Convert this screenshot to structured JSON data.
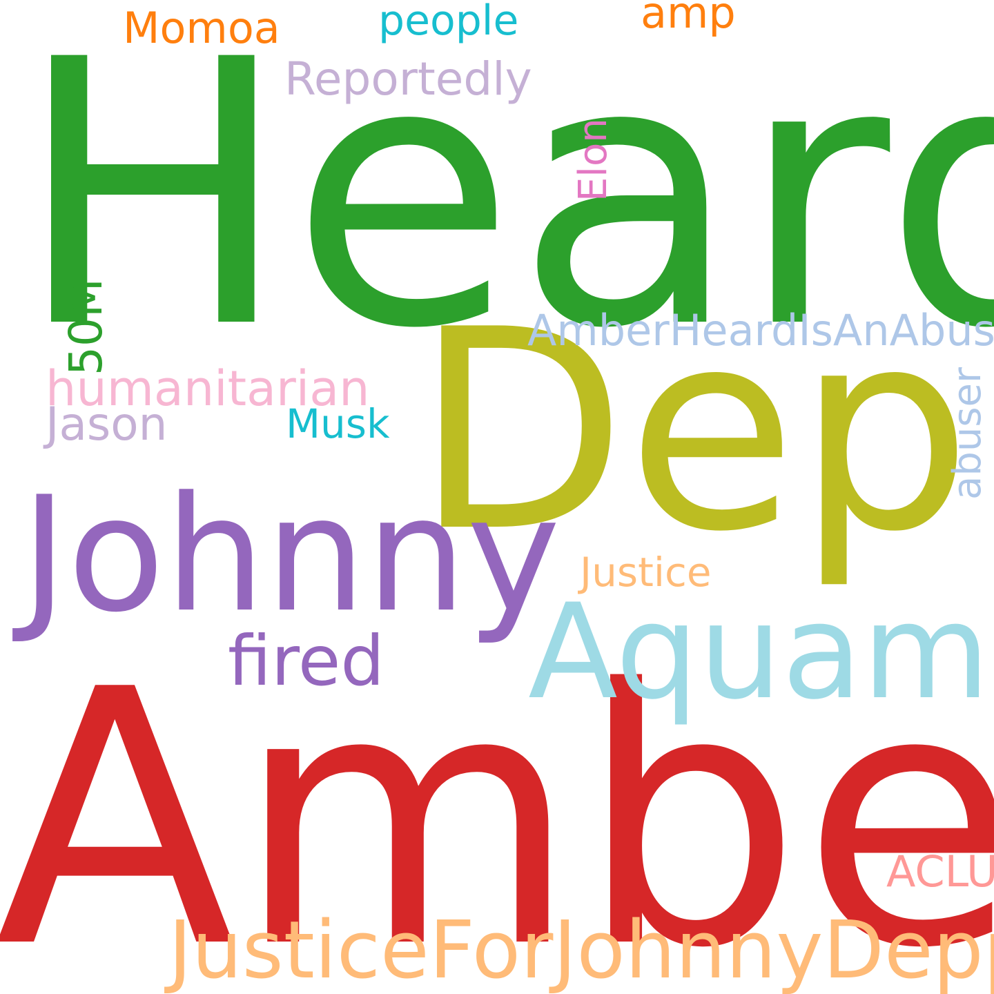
{
  "words": [
    {
      "id": "heard",
      "text": "Heard",
      "color": "#2ca02c"
    },
    {
      "id": "amber",
      "text": "Amber",
      "color": "#d62728"
    },
    {
      "id": "depp",
      "text": "Depp",
      "color": "#bcbd22"
    },
    {
      "id": "johnny",
      "text": "Johnny",
      "color": "#9467bd"
    },
    {
      "id": "aquaman",
      "text": "Aquaman",
      "color": "#9edae5"
    },
    {
      "id": "justicefor",
      "text": "JusticeForJohnnyDepp",
      "color": "#ffbb78"
    },
    {
      "id": "fired",
      "text": "fired",
      "color": "#9467bd"
    },
    {
      "id": "justice",
      "text": "Justice",
      "color": "#ffbb78"
    },
    {
      "id": "reportedly",
      "text": "Reportedly",
      "color": "#c5b0d5"
    },
    {
      "id": "humanitarian",
      "text": "humanitarian",
      "color": "#f7b6d2"
    },
    {
      "id": "jason",
      "text": "Jason",
      "color": "#c5b0d5"
    },
    {
      "id": "musk",
      "text": "Musk",
      "color": "#17becf"
    },
    {
      "id": "amberheardisanabuser",
      "text": "AmberHeardIsAnAbuser",
      "color": "#aec7e8"
    },
    {
      "id": "momoa",
      "text": "Momoa",
      "color": "#ff7f0e"
    },
    {
      "id": "people",
      "text": "people",
      "color": "#17becf"
    },
    {
      "id": "amp",
      "text": "amp",
      "color": "#ff7f0e"
    },
    {
      "id": "aclu",
      "text": "ACLU",
      "color": "#ff9896"
    },
    {
      "id": "elon",
      "text": "Elon",
      "color": "#e377c2"
    },
    {
      "id": "50m",
      "text": "50M",
      "color": "#2ca02c"
    },
    {
      "id": "abuser",
      "text": "abuser",
      "color": "#aec7e8"
    }
  ]
}
